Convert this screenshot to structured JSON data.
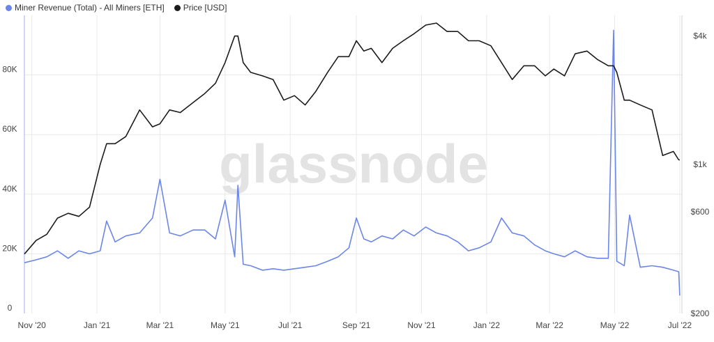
{
  "legend": {
    "miner_label": "Miner Revenue (Total) - All Miners [ETH]",
    "price_label": "Price [USD]"
  },
  "watermark": "glassnode",
  "colors": {
    "miner": "#6b86e8",
    "price": "#1b1b1b",
    "grid": "#e8e8e8"
  },
  "chart_data": {
    "type": "line",
    "x_tick_labels": [
      "Nov '20",
      "Jan '21",
      "Mar '21",
      "May '21",
      "Jul '21",
      "Sep '21",
      "Nov '21",
      "Jan '22",
      "Mar '22",
      "May '22",
      "Jul '22"
    ],
    "y_left": {
      "ticks": [
        0,
        20000,
        40000,
        60000,
        80000
      ],
      "tick_labels": [
        "0",
        "20K",
        "40K",
        "60K",
        "80K"
      ],
      "range": [
        0,
        100000
      ]
    },
    "y_right": {
      "scale": "log",
      "ticks": [
        200,
        600,
        1000,
        4000
      ],
      "tick_labels": [
        "$200",
        "$600",
        "$1k",
        "$4k"
      ],
      "range": [
        200,
        5000
      ]
    },
    "grid": true,
    "legend_position": "top-left",
    "series": [
      {
        "name": "Miner Revenue (Total) - All Miners [ETH]",
        "axis": "left",
        "x": [
          "2020-10-25",
          "2020-11-05",
          "2020-11-15",
          "2020-11-25",
          "2020-12-05",
          "2020-12-15",
          "2020-12-25",
          "2021-01-04",
          "2021-01-10",
          "2021-01-18",
          "2021-01-28",
          "2021-02-10",
          "2021-02-22",
          "2021-03-01",
          "2021-03-10",
          "2021-03-20",
          "2021-04-01",
          "2021-04-12",
          "2021-04-22",
          "2021-05-01",
          "2021-05-10",
          "2021-05-13",
          "2021-05-18",
          "2021-05-25",
          "2021-06-05",
          "2021-06-15",
          "2021-06-25",
          "2021-07-05",
          "2021-07-15",
          "2021-07-25",
          "2021-08-05",
          "2021-08-15",
          "2021-08-25",
          "2021-09-01",
          "2021-09-08",
          "2021-09-15",
          "2021-09-25",
          "2021-10-05",
          "2021-10-15",
          "2021-10-25",
          "2021-11-05",
          "2021-11-15",
          "2021-11-25",
          "2021-12-05",
          "2021-12-15",
          "2021-12-25",
          "2022-01-05",
          "2022-01-15",
          "2022-01-25",
          "2022-02-05",
          "2022-02-15",
          "2022-02-25",
          "2022-03-05",
          "2022-03-15",
          "2022-03-25",
          "2022-04-05",
          "2022-04-15",
          "2022-04-25",
          "2022-04-30",
          "2022-05-03",
          "2022-05-10",
          "2022-05-15",
          "2022-05-25",
          "2022-06-05",
          "2022-06-15",
          "2022-06-25",
          "2022-06-30",
          "2022-07-01"
        ],
        "y": [
          17000,
          18000,
          19000,
          21000,
          18500,
          21000,
          20000,
          21000,
          31000,
          24000,
          26000,
          27000,
          32000,
          45000,
          27000,
          26000,
          28000,
          28000,
          25000,
          38000,
          19000,
          43000,
          16500,
          16000,
          14500,
          15000,
          14500,
          15000,
          15500,
          16000,
          17500,
          19000,
          22000,
          32000,
          25000,
          24000,
          26000,
          25000,
          28000,
          26000,
          29000,
          27000,
          26000,
          24000,
          21000,
          22000,
          24000,
          32000,
          27000,
          26000,
          23000,
          21000,
          20000,
          19000,
          21000,
          19000,
          18500,
          18500,
          95000,
          17500,
          16000,
          33000,
          15500,
          16000,
          15500,
          14500,
          14000,
          6000
        ]
      },
      {
        "name": "Price [USD]",
        "axis": "right",
        "x": [
          "2020-10-25",
          "2020-11-05",
          "2020-11-15",
          "2020-11-25",
          "2020-12-05",
          "2020-12-15",
          "2020-12-25",
          "2021-01-04",
          "2021-01-10",
          "2021-01-18",
          "2021-01-28",
          "2021-02-10",
          "2021-02-22",
          "2021-03-01",
          "2021-03-10",
          "2021-03-20",
          "2021-04-01",
          "2021-04-12",
          "2021-04-22",
          "2021-05-01",
          "2021-05-10",
          "2021-05-13",
          "2021-05-18",
          "2021-05-25",
          "2021-06-05",
          "2021-06-15",
          "2021-06-25",
          "2021-07-05",
          "2021-07-15",
          "2021-07-25",
          "2021-08-05",
          "2021-08-15",
          "2021-08-25",
          "2021-09-01",
          "2021-09-08",
          "2021-09-15",
          "2021-09-25",
          "2021-10-05",
          "2021-10-15",
          "2021-10-25",
          "2021-11-05",
          "2021-11-15",
          "2021-11-25",
          "2021-12-05",
          "2021-12-15",
          "2021-12-25",
          "2022-01-05",
          "2022-01-15",
          "2022-01-25",
          "2022-02-05",
          "2022-02-15",
          "2022-02-25",
          "2022-03-05",
          "2022-03-15",
          "2022-03-25",
          "2022-04-05",
          "2022-04-15",
          "2022-04-25",
          "2022-04-30",
          "2022-05-03",
          "2022-05-10",
          "2022-05-15",
          "2022-05-25",
          "2022-06-05",
          "2022-06-15",
          "2022-06-25",
          "2022-06-30",
          "2022-07-01"
        ],
        "y": [
          380,
          440,
          470,
          560,
          590,
          570,
          630,
          1000,
          1250,
          1250,
          1350,
          1800,
          1500,
          1550,
          1800,
          1750,
          1950,
          2150,
          2400,
          3000,
          4000,
          4000,
          3000,
          2700,
          2600,
          2500,
          2000,
          2100,
          1900,
          2200,
          2700,
          3200,
          3200,
          3800,
          3400,
          3500,
          3000,
          3500,
          3800,
          4100,
          4500,
          4600,
          4200,
          4200,
          3800,
          3800,
          3600,
          3000,
          2500,
          2900,
          2900,
          2600,
          2800,
          2600,
          3300,
          3400,
          3100,
          2900,
          2900,
          2700,
          2000,
          2000,
          1900,
          1800,
          1100,
          1150,
          1050,
          1050
        ]
      }
    ]
  }
}
